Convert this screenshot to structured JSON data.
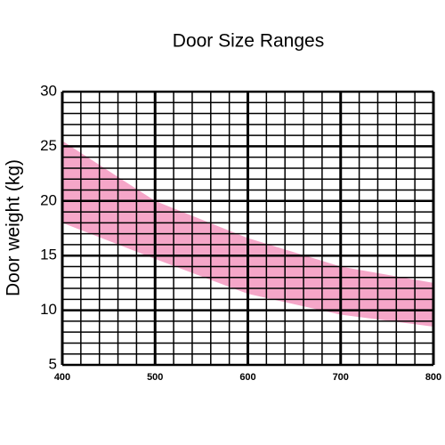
{
  "chart_data": {
    "type": "range_area",
    "title": "Door Size Ranges",
    "y_label": "Door weight (kg)",
    "x": [
      400,
      500,
      600,
      700,
      800
    ],
    "series": [
      {
        "color": "#f5a6c8",
        "upper": [
          25.5,
          20,
          16.6,
          14,
          12.5
        ],
        "lower": [
          18,
          14.7,
          11.5,
          9.6,
          8.5
        ]
      }
    ],
    "xlim": [
      400,
      800
    ],
    "xticks": [
      400,
      500,
      600,
      700,
      800
    ],
    "ylim": [
      5,
      30
    ],
    "yticks": [
      5,
      10,
      15,
      20,
      25,
      30
    ],
    "grid": true,
    "x_grid_step": 20,
    "y_grid_step": 1
  }
}
